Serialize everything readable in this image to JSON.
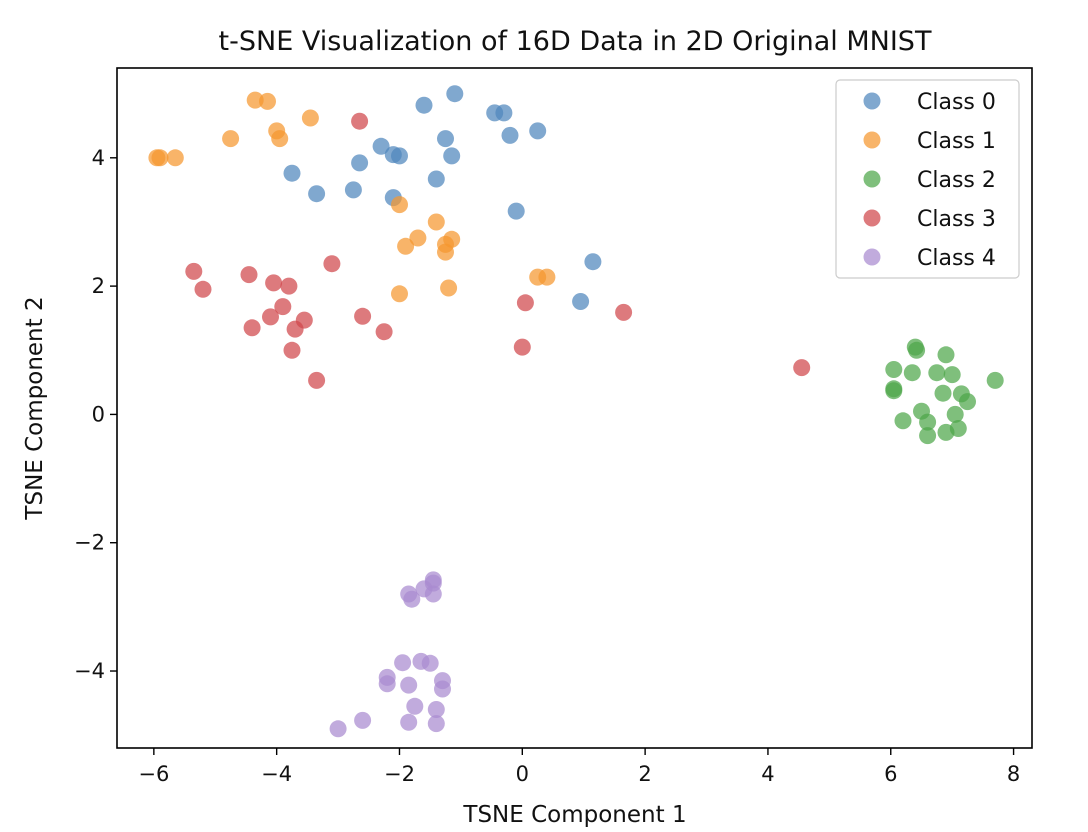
{
  "chart_data": {
    "type": "scatter",
    "title": "t-SNE Visualization of 16D Data in 2D Original MNIST",
    "xlabel": "TSNE Component 1",
    "ylabel": "TSNE Component 2",
    "xlim": [
      -6.6,
      8.3
    ],
    "ylim": [
      -5.2,
      5.4
    ],
    "xticks": [
      -6,
      -4,
      -2,
      0,
      2,
      4,
      6,
      8
    ],
    "yticks": [
      -4,
      -2,
      0,
      2,
      4
    ],
    "tick_labels_x": [
      "−6",
      "−4",
      "−2",
      "0",
      "2",
      "4",
      "6",
      "8"
    ],
    "tick_labels_y": [
      "−4",
      "−2",
      "0",
      "2",
      "4"
    ],
    "grid": false,
    "legend": "upper right",
    "series": [
      {
        "name": "Class 0",
        "color": "#4f86bd",
        "points": [
          [
            -1.1,
            5.0
          ],
          [
            -1.6,
            4.82
          ],
          [
            -0.45,
            4.7
          ],
          [
            -0.3,
            4.7
          ],
          [
            0.25,
            4.42
          ],
          [
            -0.2,
            4.35
          ],
          [
            -1.25,
            4.3
          ],
          [
            -2.3,
            4.18
          ],
          [
            -2.1,
            4.05
          ],
          [
            -2.0,
            4.03
          ],
          [
            -1.15,
            4.03
          ],
          [
            -2.65,
            3.92
          ],
          [
            -3.75,
            3.76
          ],
          [
            -1.4,
            3.67
          ],
          [
            -2.75,
            3.5
          ],
          [
            -3.35,
            3.44
          ],
          [
            -2.1,
            3.38
          ],
          [
            -0.1,
            3.17
          ],
          [
            1.15,
            2.38
          ],
          [
            0.95,
            1.76
          ]
        ]
      },
      {
        "name": "Class 1",
        "color": "#f5972f",
        "points": [
          [
            -4.35,
            4.9
          ],
          [
            -4.15,
            4.88
          ],
          [
            -3.45,
            4.62
          ],
          [
            -4.0,
            4.42
          ],
          [
            -4.75,
            4.3
          ],
          [
            -3.95,
            4.3
          ],
          [
            -5.95,
            4.0
          ],
          [
            -5.9,
            4.0
          ],
          [
            -5.65,
            4.0
          ],
          [
            -2.0,
            3.27
          ],
          [
            -1.4,
            3.0
          ],
          [
            -1.7,
            2.75
          ],
          [
            -1.15,
            2.73
          ],
          [
            -1.25,
            2.65
          ],
          [
            -1.9,
            2.62
          ],
          [
            -1.25,
            2.53
          ],
          [
            0.25,
            2.14
          ],
          [
            0.4,
            2.14
          ],
          [
            -1.2,
            1.97
          ],
          [
            -2.0,
            1.88
          ]
        ]
      },
      {
        "name": "Class 2",
        "color": "#4ea64a",
        "points": [
          [
            6.4,
            1.05
          ],
          [
            6.42,
            1.0
          ],
          [
            6.9,
            0.93
          ],
          [
            6.05,
            0.7
          ],
          [
            6.35,
            0.65
          ],
          [
            6.75,
            0.65
          ],
          [
            7.0,
            0.62
          ],
          [
            7.7,
            0.53
          ],
          [
            6.05,
            0.4
          ],
          [
            6.05,
            0.37
          ],
          [
            6.85,
            0.33
          ],
          [
            7.15,
            0.32
          ],
          [
            7.25,
            0.2
          ],
          [
            6.5,
            0.05
          ],
          [
            7.05,
            0.0
          ],
          [
            6.2,
            -0.1
          ],
          [
            6.6,
            -0.12
          ],
          [
            7.1,
            -0.22
          ],
          [
            6.9,
            -0.28
          ],
          [
            6.6,
            -0.33
          ]
        ]
      },
      {
        "name": "Class 3",
        "color": "#d0474b",
        "points": [
          [
            -2.65,
            4.57
          ],
          [
            -3.1,
            2.35
          ],
          [
            -5.35,
            2.23
          ],
          [
            -4.45,
            2.18
          ],
          [
            -4.05,
            2.05
          ],
          [
            -3.8,
            2.0
          ],
          [
            -5.2,
            1.95
          ],
          [
            0.05,
            1.74
          ],
          [
            -3.9,
            1.68
          ],
          [
            1.65,
            1.59
          ],
          [
            -2.6,
            1.53
          ],
          [
            -4.1,
            1.52
          ],
          [
            -3.55,
            1.47
          ],
          [
            -4.4,
            1.35
          ],
          [
            -3.7,
            1.33
          ],
          [
            -2.25,
            1.29
          ],
          [
            0.0,
            1.05
          ],
          [
            -3.75,
            1.0
          ],
          [
            4.55,
            0.73
          ],
          [
            -3.35,
            0.53
          ]
        ]
      },
      {
        "name": "Class 4",
        "color": "#a98ad0",
        "points": [
          [
            -1.45,
            -2.58
          ],
          [
            -1.45,
            -2.63
          ],
          [
            -1.6,
            -2.72
          ],
          [
            -1.85,
            -2.8
          ],
          [
            -1.45,
            -2.8
          ],
          [
            -1.8,
            -2.88
          ],
          [
            -1.65,
            -3.85
          ],
          [
            -1.95,
            -3.87
          ],
          [
            -1.5,
            -3.88
          ],
          [
            -2.2,
            -4.1
          ],
          [
            -1.3,
            -4.15
          ],
          [
            -2.2,
            -4.2
          ],
          [
            -1.85,
            -4.22
          ],
          [
            -1.3,
            -4.28
          ],
          [
            -1.75,
            -4.55
          ],
          [
            -1.4,
            -4.6
          ],
          [
            -2.6,
            -4.77
          ],
          [
            -1.85,
            -4.8
          ],
          [
            -1.4,
            -4.82
          ],
          [
            -3.0,
            -4.9
          ]
        ]
      }
    ]
  }
}
